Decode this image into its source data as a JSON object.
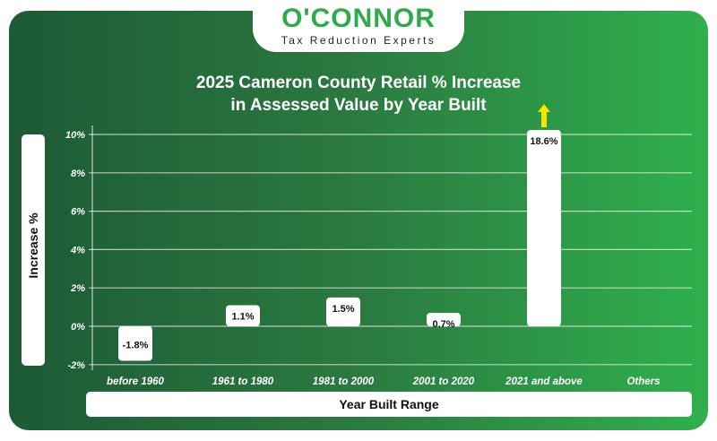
{
  "logo": {
    "name": "O'CONNOR",
    "tagline": "Tax Reduction Experts"
  },
  "colors": {
    "accent": "#2eaa4a",
    "arrow": "#f5e600"
  },
  "chart_data": {
    "type": "bar",
    "title": "2025 Cameron County Retail % Increase in Assessed Value by Year Built",
    "title_lines": [
      "2025 Cameron County Retail % Increase",
      "in Assessed Value by Year Built"
    ],
    "xlabel": "Year Built Range",
    "ylabel": "Increase %",
    "categories": [
      "before 1960",
      "1961 to 1980",
      "1981 to 2000",
      "2001 to 2020",
      "2021 and above",
      "Others"
    ],
    "values": [
      -1.8,
      1.1,
      1.5,
      0.7,
      18.6,
      null
    ],
    "data_labels": [
      "-1.8%",
      "1.1%",
      "1.5%",
      "0.7%",
      "18.6%",
      ""
    ],
    "ylim": [
      -2,
      10
    ],
    "yticks": [
      "-2%",
      "0%",
      "2%",
      "4%",
      "6%",
      "8%",
      "10%"
    ],
    "grid": true,
    "overflow_arrow": "2021 and above"
  }
}
